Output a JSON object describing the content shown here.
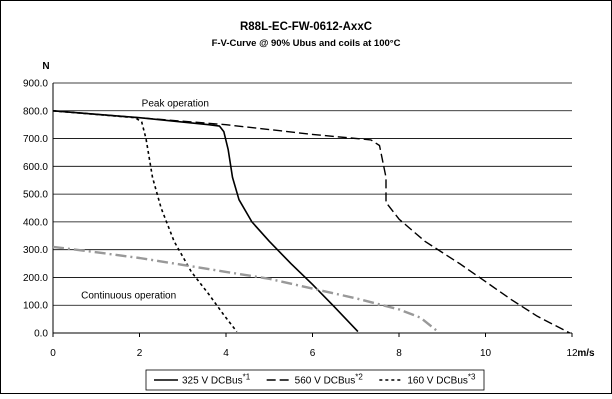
{
  "chart_data": {
    "type": "line",
    "title": "R88L-EC-FW-0612-AxxC",
    "subtitle": "F-V-Curve @ 90% Ubus and coils at 100°C",
    "ylabel": "N",
    "xlabel": "m/s",
    "xlim": [
      0,
      12
    ],
    "ylim": [
      0,
      900
    ],
    "xticks": [
      "0",
      "2",
      "4",
      "6",
      "8",
      "10",
      "12"
    ],
    "yticks": [
      "0.0",
      "100.0",
      "200.0",
      "300.0",
      "400.0",
      "500.0",
      "600.0",
      "700.0",
      "800.0",
      "900.0"
    ],
    "grid": "horizontal",
    "annotations": [
      {
        "text": "Peak operation",
        "x": 2.05,
        "y": 815
      },
      {
        "text": "Continuous operation",
        "x": 0.65,
        "y": 125
      }
    ],
    "legend_position": "bottom",
    "series": [
      {
        "name": "325 V DCBus",
        "superscript": "*1",
        "color": "#000000",
        "dash": "solid",
        "width": 1.6,
        "points": [
          [
            0,
            800
          ],
          [
            2.0,
            775
          ],
          [
            3.6,
            750
          ],
          [
            3.85,
            745
          ],
          [
            3.95,
            725
          ],
          [
            4.05,
            660
          ],
          [
            4.15,
            560
          ],
          [
            4.3,
            480
          ],
          [
            4.6,
            400
          ],
          [
            5.0,
            330
          ],
          [
            5.5,
            250
          ],
          [
            6.0,
            175
          ],
          [
            6.5,
            95
          ],
          [
            7.05,
            5
          ]
        ]
      },
      {
        "name": "560 V DCBus",
        "superscript": "*2",
        "color": "#000000",
        "dash": "dashed",
        "width": 1.4,
        "points": [
          [
            0,
            800
          ],
          [
            4.0,
            750
          ],
          [
            6.0,
            715
          ],
          [
            7.35,
            695
          ],
          [
            7.55,
            675
          ],
          [
            7.7,
            560
          ],
          [
            7.7,
            470
          ],
          [
            8.0,
            410
          ],
          [
            8.6,
            330
          ],
          [
            9.4,
            250
          ],
          [
            10.0,
            185
          ],
          [
            10.6,
            120
          ],
          [
            11.2,
            60
          ],
          [
            11.95,
            0
          ]
        ]
      },
      {
        "name": "160 V DCBus",
        "superscript": "*3",
        "color": "#000000",
        "dash": "dotted",
        "width": 1.6,
        "points": [
          [
            0,
            800
          ],
          [
            1.9,
            775
          ],
          [
            2.05,
            760
          ],
          [
            2.15,
            700
          ],
          [
            2.3,
            560
          ],
          [
            2.5,
            450
          ],
          [
            2.8,
            330
          ],
          [
            3.2,
            220
          ],
          [
            3.6,
            140
          ],
          [
            3.95,
            65
          ],
          [
            4.25,
            5
          ]
        ]
      },
      {
        "name": "",
        "color": "#999999",
        "dash": "dashdot",
        "width": 2.4,
        "points": [
          [
            0,
            310
          ],
          [
            0.8,
            295
          ],
          [
            2.0,
            270
          ],
          [
            3.0,
            245
          ],
          [
            4.0,
            220
          ],
          [
            5.0,
            195
          ],
          [
            6.0,
            160
          ],
          [
            7.0,
            125
          ],
          [
            8.0,
            85
          ],
          [
            8.5,
            55
          ],
          [
            8.9,
            5
          ]
        ]
      }
    ]
  }
}
